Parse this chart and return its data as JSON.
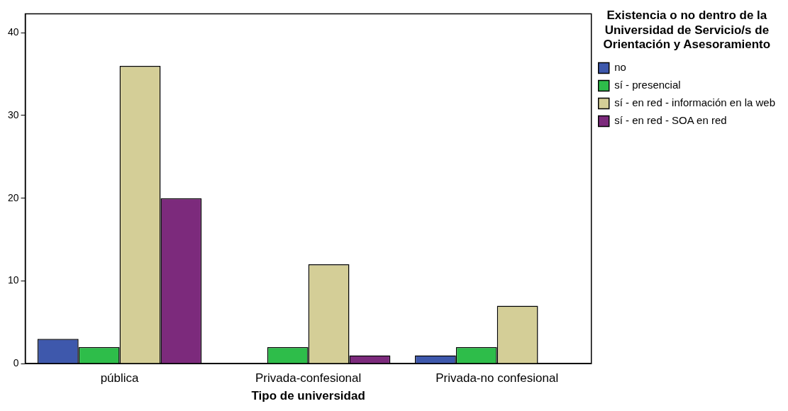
{
  "chart_data": {
    "type": "bar",
    "xlabel": "Tipo de universidad",
    "legend_title": "Existencia o no dentro de la Universidad de Servicio/s de Orientación y Asesoramiento",
    "categories": [
      "pública",
      "Privada-confesional",
      "Privada-no confesional"
    ],
    "series": [
      {
        "name": "no",
        "color": "#3e58ac",
        "values": [
          3,
          null,
          1
        ]
      },
      {
        "name": "sí - presencial",
        "color": "#2ebd4a",
        "values": [
          2,
          2,
          2
        ]
      },
      {
        "name": "sí - en red - información en la web",
        "color": "#d4ce97",
        "values": [
          36,
          12,
          7
        ]
      },
      {
        "name": "sí - en red - SOA en red",
        "color": "#7c2a7c",
        "values": [
          20,
          1,
          null
        ]
      }
    ],
    "ylim": [
      0,
      42.3
    ],
    "yticks": [
      0,
      10,
      20,
      30,
      40
    ],
    "grid": false,
    "legend": "right"
  }
}
